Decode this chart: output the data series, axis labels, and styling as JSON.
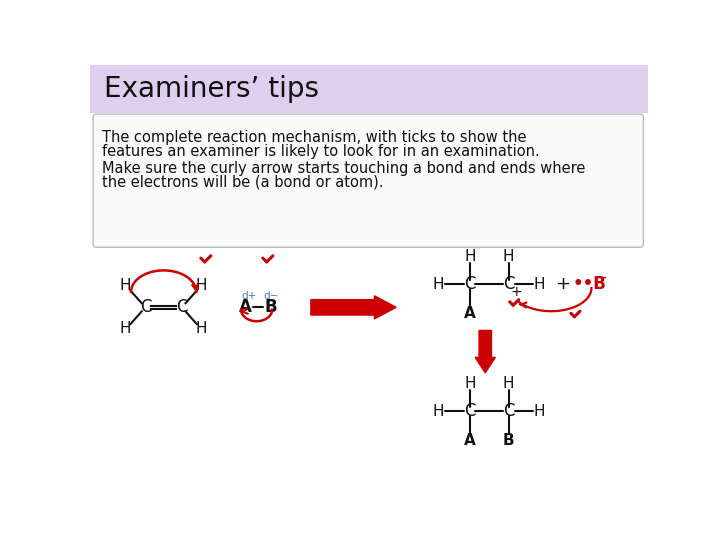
{
  "title": "Examiners’ tips",
  "title_bg_color": "#ddd0ee",
  "title_text_color": "#111111",
  "title_fontsize": 20,
  "box_text_line1": "The complete reaction mechanism, with ticks to show the",
  "box_text_line2": "features an examiner is likely to look for in an examination.",
  "box_text_line3": "Make sure the curly arrow starts touching a bond and ends where",
  "box_text_line4": "the electrons will be (a bond or atom).",
  "box_bg": "#fafafa",
  "box_border": "#bbbbbb",
  "text_fontsize": 10.5,
  "red_color": "#cc0000",
  "blue_color": "#4477bb",
  "black_color": "#111111",
  "bg_color": "#ffffff"
}
